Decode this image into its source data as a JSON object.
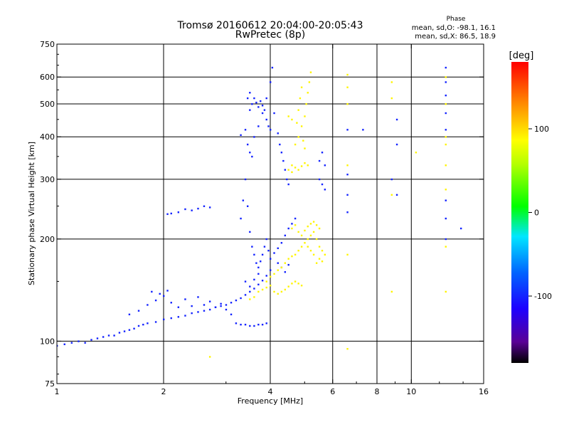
{
  "chart_data": {
    "type": "scatter",
    "title": "Tromsø 20160612 20:04:00-20:05:43",
    "subtitle": "RwPretec (8p)",
    "xlabel": "Frequency [MHz]",
    "ylabel": "Stationary phase Virtual Height [km]",
    "x_scale": "log",
    "y_scale": "log",
    "xlim": [
      1,
      16
    ],
    "ylim": [
      75,
      750
    ],
    "x_ticks": [
      1,
      2,
      4,
      6,
      8,
      10,
      16
    ],
    "x_tick_labels": [
      "1",
      "2",
      "4",
      "6",
      "8",
      "10",
      "16"
    ],
    "x_gridlines": [
      2,
      4,
      6,
      8,
      10
    ],
    "y_ticks": [
      75,
      100,
      200,
      300,
      400,
      500,
      600,
      750
    ],
    "y_tick_labels": [
      "75",
      "100",
      "200",
      "300",
      "400",
      "500",
      "600",
      "750"
    ],
    "y_gridlines": [
      100,
      200,
      300,
      400,
      500,
      600
    ],
    "grid": true,
    "colorbar": {
      "label": "[deg]",
      "range": [
        -180,
        180
      ],
      "ticks": [
        100,
        0,
        -100
      ],
      "tick_labels": [
        "100",
        "0",
        "-100"
      ]
    },
    "phase_stats": {
      "title": "Phase",
      "line_o": "mean, sd,O: -98.1, 16.1",
      "line_x": "mean, sd,X:  86.5, 18.9"
    },
    "series": [
      {
        "mode": "O",
        "phase_deg": -100,
        "points": [
          [
            1.0,
            97
          ],
          [
            1.05,
            98
          ],
          [
            1.1,
            99
          ],
          [
            1.15,
            100
          ],
          [
            1.2,
            99
          ],
          [
            1.25,
            101
          ],
          [
            1.3,
            102
          ],
          [
            1.35,
            103
          ],
          [
            1.4,
            104
          ],
          [
            1.45,
            104
          ],
          [
            1.5,
            106
          ],
          [
            1.55,
            107
          ],
          [
            1.6,
            108
          ],
          [
            1.65,
            109
          ],
          [
            1.7,
            111
          ],
          [
            1.75,
            112
          ],
          [
            1.8,
            113
          ],
          [
            1.9,
            114
          ],
          [
            2.0,
            116
          ],
          [
            2.1,
            117
          ],
          [
            2.2,
            118
          ],
          [
            2.3,
            119
          ],
          [
            2.4,
            121
          ],
          [
            2.5,
            122
          ],
          [
            2.6,
            123
          ],
          [
            2.7,
            124
          ],
          [
            2.8,
            126
          ],
          [
            2.9,
            127
          ],
          [
            3.0,
            128
          ],
          [
            3.1,
            130
          ],
          [
            3.2,
            132
          ],
          [
            3.3,
            134
          ],
          [
            3.4,
            137
          ],
          [
            3.5,
            140
          ],
          [
            3.6,
            143
          ],
          [
            3.7,
            147
          ],
          [
            3.8,
            151
          ],
          [
            3.9,
            156
          ],
          [
            4.0,
            162
          ],
          [
            1.6,
            120
          ],
          [
            1.7,
            123
          ],
          [
            1.8,
            128
          ],
          [
            1.9,
            132
          ],
          [
            2.0,
            136
          ],
          [
            2.1,
            130
          ],
          [
            2.2,
            126
          ],
          [
            2.4,
            127
          ],
          [
            2.6,
            128
          ],
          [
            2.8,
            126
          ],
          [
            3.0,
            124
          ],
          [
            3.1,
            120
          ],
          [
            1.85,
            140
          ],
          [
            1.95,
            138
          ],
          [
            2.05,
            141
          ],
          [
            2.3,
            133
          ],
          [
            2.5,
            135
          ],
          [
            2.7,
            131
          ],
          [
            2.9,
            129
          ],
          [
            2.05,
            237
          ],
          [
            2.1,
            238
          ],
          [
            2.2,
            240
          ],
          [
            2.3,
            245
          ],
          [
            2.4,
            243
          ],
          [
            2.5,
            246
          ],
          [
            2.6,
            250
          ],
          [
            2.7,
            248
          ],
          [
            3.2,
            113
          ],
          [
            3.3,
            112
          ],
          [
            3.4,
            112
          ],
          [
            3.5,
            111
          ],
          [
            3.6,
            111
          ],
          [
            3.7,
            112
          ],
          [
            3.8,
            112
          ],
          [
            3.9,
            113
          ],
          [
            3.3,
            230
          ],
          [
            3.35,
            260
          ],
          [
            3.4,
            300
          ],
          [
            3.45,
            250
          ],
          [
            3.5,
            210
          ],
          [
            3.55,
            190
          ],
          [
            3.6,
            180
          ],
          [
            3.65,
            170
          ],
          [
            3.7,
            165
          ],
          [
            3.75,
            172
          ],
          [
            3.8,
            180
          ],
          [
            3.85,
            190
          ],
          [
            3.9,
            200
          ],
          [
            3.95,
            185
          ],
          [
            4.0,
            175
          ],
          [
            4.1,
            182
          ],
          [
            4.2,
            188
          ],
          [
            4.3,
            195
          ],
          [
            4.4,
            205
          ],
          [
            4.5,
            215
          ],
          [
            4.6,
            222
          ],
          [
            4.7,
            230
          ],
          [
            4.2,
            170
          ],
          [
            4.3,
            165
          ],
          [
            4.4,
            160
          ],
          [
            4.5,
            168
          ],
          [
            3.4,
            150
          ],
          [
            3.5,
            145
          ],
          [
            3.6,
            152
          ],
          [
            3.7,
            158
          ],
          [
            3.6,
            400
          ],
          [
            3.7,
            430
          ],
          [
            3.8,
            470
          ],
          [
            3.9,
            520
          ],
          [
            4.0,
            580
          ],
          [
            4.05,
            640
          ],
          [
            4.1,
            470
          ],
          [
            3.5,
            480
          ],
          [
            3.55,
            500
          ],
          [
            3.6,
            520
          ],
          [
            3.65,
            505
          ],
          [
            3.7,
            490
          ],
          [
            3.75,
            510
          ],
          [
            3.8,
            495
          ],
          [
            3.85,
            480
          ],
          [
            3.5,
            540
          ],
          [
            3.45,
            520
          ],
          [
            3.9,
            450
          ],
          [
            3.95,
            430
          ],
          [
            4.0,
            420
          ],
          [
            3.3,
            405
          ],
          [
            3.4,
            420
          ],
          [
            3.45,
            380
          ],
          [
            3.5,
            360
          ],
          [
            3.55,
            350
          ],
          [
            4.2,
            410
          ],
          [
            4.25,
            380
          ],
          [
            4.3,
            360
          ],
          [
            4.35,
            340
          ],
          [
            4.4,
            320
          ],
          [
            4.45,
            300
          ],
          [
            4.5,
            290
          ],
          [
            5.5,
            340
          ],
          [
            5.6,
            360
          ],
          [
            5.7,
            330
          ],
          [
            5.5,
            300
          ],
          [
            5.6,
            290
          ],
          [
            5.7,
            280
          ],
          [
            6.6,
            420
          ],
          [
            6.6,
            310
          ],
          [
            6.6,
            270
          ],
          [
            6.6,
            240
          ],
          [
            7.3,
            420
          ],
          [
            8.8,
            300
          ],
          [
            9.1,
            450
          ],
          [
            9.1,
            380
          ],
          [
            9.1,
            270
          ],
          [
            12.5,
            640
          ],
          [
            12.5,
            580
          ],
          [
            12.5,
            530
          ],
          [
            12.5,
            470
          ],
          [
            12.5,
            420
          ],
          [
            12.5,
            260
          ],
          [
            12.5,
            230
          ],
          [
            12.5,
            200
          ],
          [
            13.8,
            215
          ]
        ]
      },
      {
        "mode": "X",
        "phase_deg": 90,
        "points": [
          [
            3.7,
            140
          ],
          [
            3.8,
            142
          ],
          [
            3.9,
            144
          ],
          [
            4.0,
            146
          ],
          [
            4.1,
            140
          ],
          [
            4.2,
            138
          ],
          [
            4.3,
            140
          ],
          [
            4.4,
            142
          ],
          [
            4.5,
            145
          ],
          [
            4.6,
            148
          ],
          [
            4.7,
            150
          ],
          [
            4.8,
            148
          ],
          [
            4.9,
            146
          ],
          [
            3.6,
            135
          ],
          [
            3.5,
            133
          ],
          [
            3.9,
            150
          ],
          [
            4.0,
            155
          ],
          [
            4.1,
            158
          ],
          [
            4.2,
            162
          ],
          [
            4.3,
            165
          ],
          [
            4.4,
            170
          ],
          [
            4.5,
            175
          ],
          [
            4.6,
            178
          ],
          [
            4.7,
            180
          ],
          [
            4.8,
            185
          ],
          [
            4.9,
            190
          ],
          [
            5.0,
            195
          ],
          [
            5.1,
            200
          ],
          [
            5.2,
            205
          ],
          [
            5.3,
            210
          ],
          [
            5.4,
            200
          ],
          [
            5.5,
            190
          ],
          [
            5.6,
            185
          ],
          [
            5.7,
            180
          ],
          [
            5.5,
            175
          ],
          [
            5.4,
            170
          ],
          [
            5.6,
            172
          ],
          [
            5.3,
            180
          ],
          [
            5.2,
            185
          ],
          [
            5.1,
            190
          ],
          [
            4.6,
            215
          ],
          [
            4.7,
            220
          ],
          [
            4.8,
            210
          ],
          [
            4.9,
            205
          ],
          [
            5.0,
            212
          ],
          [
            5.1,
            218
          ],
          [
            5.2,
            222
          ],
          [
            5.3,
            225
          ],
          [
            5.4,
            220
          ],
          [
            5.5,
            215
          ],
          [
            4.6,
            330
          ],
          [
            4.7,
            325
          ],
          [
            4.8,
            320
          ],
          [
            4.9,
            328
          ],
          [
            5.0,
            335
          ],
          [
            5.1,
            330
          ],
          [
            4.5,
            320
          ],
          [
            4.6,
            315
          ],
          [
            4.7,
            380
          ],
          [
            4.8,
            400
          ],
          [
            4.9,
            430
          ],
          [
            5.0,
            460
          ],
          [
            5.05,
            500
          ],
          [
            5.1,
            540
          ],
          [
            5.15,
            580
          ],
          [
            5.2,
            620
          ],
          [
            4.8,
            480
          ],
          [
            4.85,
            520
          ],
          [
            4.9,
            560
          ],
          [
            4.75,
            440
          ],
          [
            4.95,
            390
          ],
          [
            5.0,
            370
          ],
          [
            4.6,
            450
          ],
          [
            4.5,
            460
          ],
          [
            6.6,
            610
          ],
          [
            6.6,
            560
          ],
          [
            6.6,
            500
          ],
          [
            6.6,
            330
          ],
          [
            6.6,
            180
          ],
          [
            8.8,
            580
          ],
          [
            8.8,
            520
          ],
          [
            8.8,
            270
          ],
          [
            8.8,
            140
          ],
          [
            10.3,
            360
          ],
          [
            12.5,
            600
          ],
          [
            12.5,
            500
          ],
          [
            12.5,
            400
          ],
          [
            12.5,
            380
          ],
          [
            12.5,
            330
          ],
          [
            12.5,
            280
          ],
          [
            12.5,
            190
          ],
          [
            12.5,
            140
          ],
          [
            6.6,
            95
          ],
          [
            2.7,
            90
          ]
        ]
      }
    ]
  }
}
